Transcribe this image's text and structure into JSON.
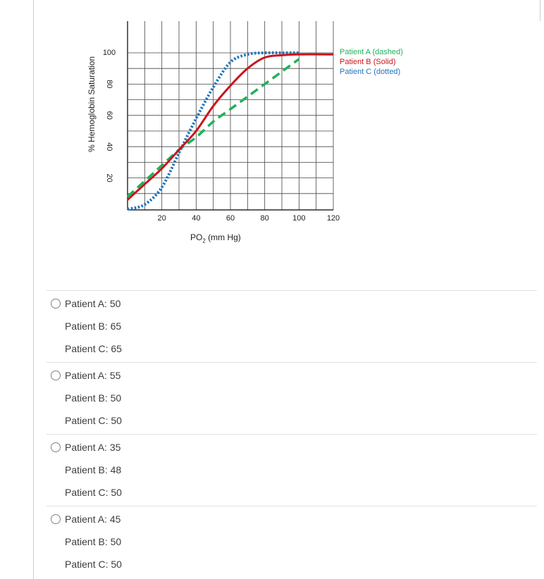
{
  "chart_data": {
    "type": "line",
    "ylabel": "% Hemoglobin Saturation",
    "xlabel_main": "PO",
    "xlabel_sub": "2",
    "xlabel_unit": " (mm Hg)",
    "xlim": [
      0,
      120
    ],
    "ylim": [
      0,
      100
    ],
    "x_ticks": [
      20,
      40,
      60,
      80,
      100,
      120
    ],
    "y_ticks": [
      20,
      40,
      60,
      80,
      100
    ],
    "grid": true,
    "legend_position": "right",
    "series": [
      {
        "name": "Patient A (dashed)",
        "color": "#1db35a",
        "style": "dashed",
        "x": [
          0,
          10,
          20,
          30,
          40,
          50,
          60,
          70,
          80,
          90,
          100
        ],
        "y": [
          8,
          18,
          28,
          38,
          46,
          56,
          64,
          72,
          80,
          88,
          96
        ]
      },
      {
        "name": "Patient B (Solid)",
        "color": "#c8151b",
        "style": "solid",
        "x": [
          0,
          10,
          20,
          30,
          40,
          50,
          60,
          70,
          80,
          90,
          100,
          120
        ],
        "y": [
          6,
          16,
          26,
          38,
          50,
          66,
          79,
          90,
          97,
          98.5,
          99,
          99
        ]
      },
      {
        "name": "Patient C (dotted)",
        "color": "#1f73be",
        "style": "dotted",
        "x": [
          0,
          10,
          20,
          30,
          40,
          50,
          60,
          70,
          80,
          90,
          100
        ],
        "y": [
          0,
          3,
          14,
          36,
          58,
          78,
          94,
          99,
          100,
          100,
          100
        ]
      }
    ]
  },
  "options": [
    {
      "lines": [
        "Patient A: 50",
        "Patient B: 65",
        "Patient C: 65"
      ]
    },
    {
      "lines": [
        "Patient A: 55",
        "Patient B: 50",
        "Patient C: 50"
      ]
    },
    {
      "lines": [
        "Patient A: 35",
        "Patient B: 48",
        "Patient C: 50"
      ]
    },
    {
      "lines": [
        "Patient A: 45",
        "Patient B: 50",
        "Patient C: 50"
      ]
    }
  ]
}
